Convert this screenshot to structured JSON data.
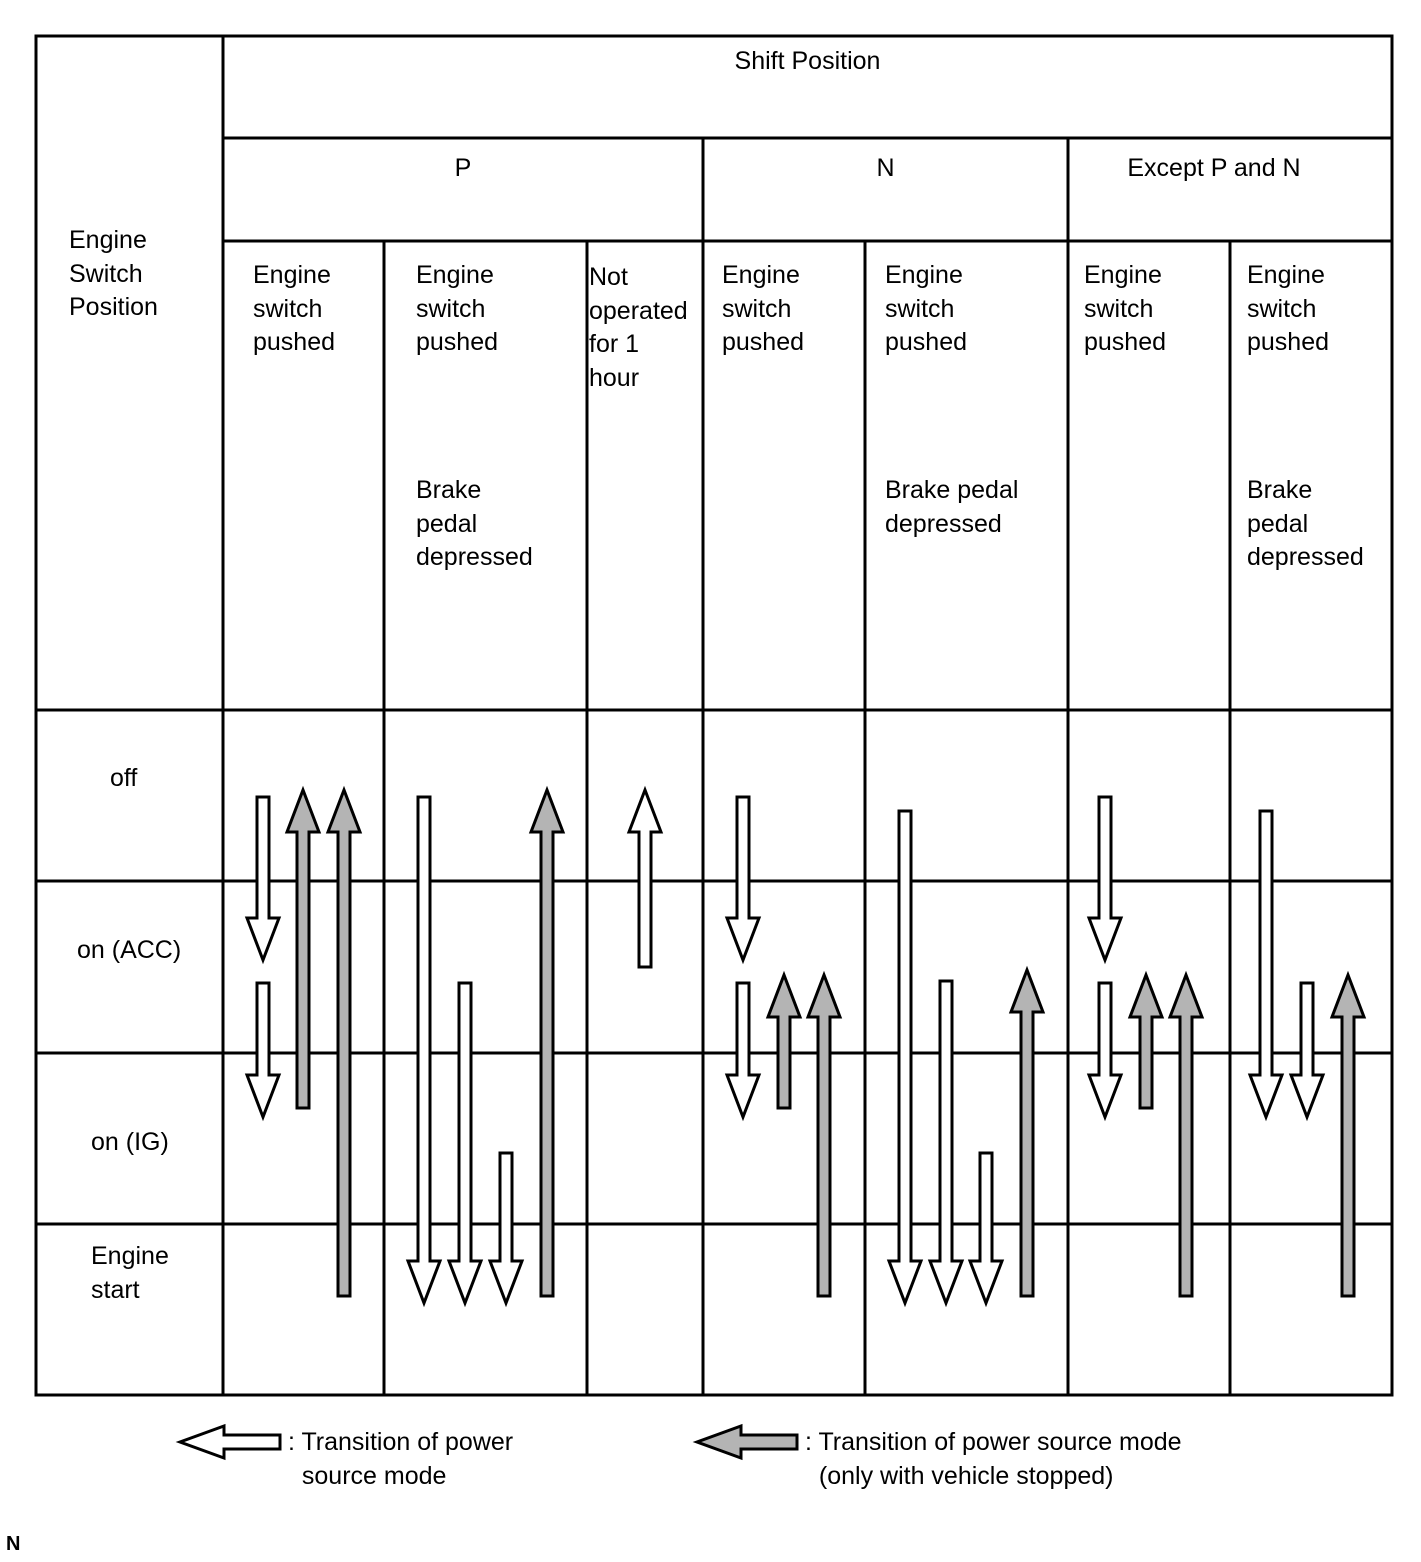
{
  "header": {
    "engine_switch_position": "Engine\nSwitch\nPosition",
    "shift_position": "Shift Position",
    "groups": [
      "P",
      "N",
      "Except P and N"
    ]
  },
  "columns": [
    {
      "shift": "P",
      "condition": "Engine\nswitch\npushed",
      "extra": ""
    },
    {
      "shift": "P",
      "condition": "Engine\nswitch\npushed",
      "extra": "Brake\npedal\ndepressed"
    },
    {
      "shift": "P",
      "condition": "Not\noperated\nfor 1\nhour",
      "extra": ""
    },
    {
      "shift": "N",
      "condition": "Engine\nswitch\npushed",
      "extra": ""
    },
    {
      "shift": "N",
      "condition": "Engine\nswitch\npushed",
      "extra": "Brake pedal\ndepressed"
    },
    {
      "shift": "Except P and N",
      "condition": "Engine\nswitch\npushed",
      "extra": ""
    },
    {
      "shift": "Except P and N",
      "condition": "Engine\nswitch\npushed",
      "extra": "Brake\npedal\ndepressed"
    }
  ],
  "rows": [
    "off",
    "on (ACC)",
    "on (IG)",
    "Engine\nstart"
  ],
  "transitions": [
    {
      "col": 0,
      "from": "off",
      "to": "on (ACC)",
      "kind": "normal"
    },
    {
      "col": 0,
      "from": "on (ACC)",
      "to": "on (IG)",
      "kind": "normal"
    },
    {
      "col": 0,
      "from": "on (IG)",
      "to": "off",
      "kind": "stopped"
    },
    {
      "col": 0,
      "from": "Engine start",
      "to": "off",
      "kind": "stopped"
    },
    {
      "col": 1,
      "from": "off",
      "to": "Engine start",
      "kind": "normal"
    },
    {
      "col": 1,
      "from": "on (ACC)",
      "to": "Engine start",
      "kind": "normal"
    },
    {
      "col": 1,
      "from": "on (IG)",
      "to": "Engine start",
      "kind": "normal"
    },
    {
      "col": 1,
      "from": "Engine start",
      "to": "off",
      "kind": "stopped"
    },
    {
      "col": 2,
      "from": "on (ACC)",
      "to": "off",
      "kind": "normal"
    },
    {
      "col": 3,
      "from": "off",
      "to": "on (ACC)",
      "kind": "normal"
    },
    {
      "col": 3,
      "from": "on (ACC)",
      "to": "on (IG)",
      "kind": "normal"
    },
    {
      "col": 3,
      "from": "on (IG)",
      "to": "on (ACC)",
      "kind": "stopped"
    },
    {
      "col": 3,
      "from": "Engine start",
      "to": "on (ACC)",
      "kind": "stopped"
    },
    {
      "col": 4,
      "from": "off",
      "to": "Engine start",
      "kind": "normal"
    },
    {
      "col": 4,
      "from": "on (ACC)",
      "to": "Engine start",
      "kind": "normal"
    },
    {
      "col": 4,
      "from": "on (IG)",
      "to": "Engine start",
      "kind": "normal"
    },
    {
      "col": 4,
      "from": "Engine start",
      "to": "on (ACC)",
      "kind": "stopped"
    },
    {
      "col": 5,
      "from": "off",
      "to": "on (ACC)",
      "kind": "normal"
    },
    {
      "col": 5,
      "from": "on (ACC)",
      "to": "on (IG)",
      "kind": "normal"
    },
    {
      "col": 5,
      "from": "on (IG)",
      "to": "on (ACC)",
      "kind": "stopped"
    },
    {
      "col": 5,
      "from": "Engine start",
      "to": "on (ACC)",
      "kind": "stopped"
    },
    {
      "col": 6,
      "from": "off",
      "to": "on (IG)",
      "kind": "normal"
    },
    {
      "col": 6,
      "from": "on (ACC)",
      "to": "on (IG)",
      "kind": "normal"
    },
    {
      "col": 6,
      "from": "Engine start",
      "to": "on (ACC)",
      "kind": "stopped"
    }
  ],
  "legend": {
    "normal": ": Transition of power\n  source mode",
    "stopped": ": Transition of power source mode\n  (only with vehicle stopped)"
  },
  "colors": {
    "normal_fill": "#ffffff",
    "stopped_fill": "#b4b4b4",
    "line": "#000000"
  },
  "corner_label": "N"
}
